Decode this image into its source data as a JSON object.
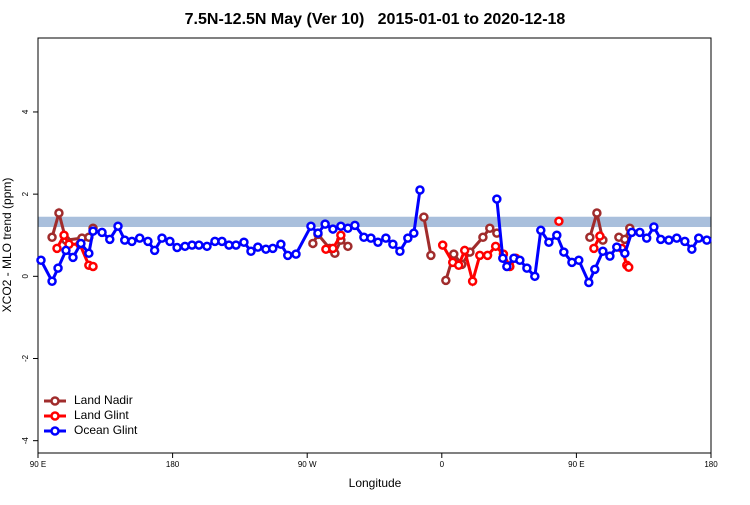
{
  "chart_data": {
    "type": "line",
    "title": "7.5N-12.5N May (Ver 10)   2015-01-01 to 2020-12-18",
    "x_label": "Longitude",
    "y_label": "XCO2 - MLO trend (ppm)",
    "xlim": [
      90,
      540
    ],
    "xticks": [
      {
        "value": 90,
        "label": "90 E"
      },
      {
        "value": 180,
        "label": "180"
      },
      {
        "value": 270,
        "label": "90 W"
      },
      {
        "value": 360,
        "label": "0"
      },
      {
        "value": 450,
        "label": "90 E"
      },
      {
        "value": 540,
        "label": "180"
      }
    ],
    "ylim": [
      -4.3,
      5.8
    ],
    "yticks": [
      -4,
      -2,
      0,
      2,
      4
    ],
    "band": {
      "range": [
        1.2,
        1.45
      ],
      "color": "#a9bfdc"
    },
    "legend": "bottom-left",
    "series": [
      {
        "name": "Land Nadir",
        "color": "#a02c2c",
        "x": [
          99.4,
          104,
          108.7,
          119.4,
          124,
          126.8,
          null,
          273.8,
          277.2,
          285,
          288.5,
          292.5,
          297.2,
          null,
          348,
          352.7,
          null,
          362.7,
          368,
          373.4,
          378.8,
          387.5,
          392.1,
          396.8,
          null,
          459,
          463.7,
          467.7,
          null,
          478.4,
          482.4,
          485.7
        ],
        "values": [
          0.95,
          1.54,
          0.88,
          0.93,
          0.95,
          1.17,
          null,
          0.8,
          1.02,
          0.68,
          0.56,
          0.88,
          0.73,
          null,
          1.44,
          0.51,
          null,
          -0.1,
          0.54,
          0.29,
          0.59,
          0.95,
          1.17,
          1.05,
          null,
          0.95,
          1.54,
          0.88,
          null,
          0.95,
          0.9,
          1.17
        ]
      },
      {
        "name": "Land Glint",
        "color": "#ff0000",
        "x": [
          102.7,
          107.4,
          110.7,
          118,
          124,
          126.8,
          null,
          282.5,
          287.2,
          292.5,
          null,
          360.6,
          367.3,
          371.3,
          375.3,
          380.6,
          385.4,
          390.6,
          396,
          401.2,
          405.5,
          409.5,
          null,
          438.3,
          null,
          461.7,
          465.7,
          null,
          480.4,
          483.7,
          485
        ],
        "values": [
          0.68,
          1.0,
          0.78,
          0.78,
          0.27,
          0.24,
          null,
          0.66,
          0.68,
          1.0,
          null,
          0.76,
          0.34,
          0.27,
          0.63,
          -0.12,
          0.51,
          0.51,
          0.73,
          0.54,
          0.24,
          0.44,
          null,
          1.34,
          null,
          0.68,
          0.98,
          null,
          0.68,
          0.27,
          0.22
        ]
      },
      {
        "name": "Ocean Glint",
        "color": "#0000ff",
        "x": [
          92,
          99.4,
          103.4,
          108.7,
          113.4,
          118.7,
          124,
          126.8,
          132.8,
          138,
          143.5,
          148,
          152.8,
          158,
          163.5,
          168,
          172.9,
          178.2,
          183,
          188.3,
          193,
          197.6,
          203,
          208.3,
          213,
          217.7,
          222.4,
          227.7,
          232.4,
          237,
          242.4,
          247,
          252.4,
          257,
          262.5,
          272.5,
          277.2,
          282,
          287.2,
          292.5,
          297.2,
          301.9,
          307.9,
          312.6,
          317.3,
          322.6,
          327.3,
          332,
          337.3,
          341.3,
          345.4,
          null,
          396.8,
          400.8,
          403.5,
          408.2,
          412.2,
          416.9,
          422.2,
          426.2,
          431.6,
          436.9,
          441.6,
          447,
          451.6,
          458.3,
          462.3,
          467.7,
          472.4,
          477,
          482.4,
          487,
          492.4,
          497,
          501.8,
          506.4,
          511.8,
          517.1,
          522.5,
          527.2,
          531.8,
          537.2
        ],
        "values": [
          0.39,
          -0.12,
          0.2,
          0.63,
          0.46,
          0.8,
          0.56,
          1.1,
          1.07,
          0.9,
          1.22,
          0.88,
          0.85,
          0.93,
          0.85,
          0.63,
          0.93,
          0.85,
          0.7,
          0.73,
          0.76,
          0.76,
          0.73,
          0.85,
          0.85,
          0.76,
          0.76,
          0.83,
          0.61,
          0.71,
          0.66,
          0.68,
          0.78,
          0.51,
          0.54,
          1.22,
          1.05,
          1.27,
          1.15,
          1.22,
          1.17,
          1.24,
          0.95,
          0.93,
          0.83,
          0.93,
          0.78,
          0.61,
          0.93,
          1.05,
          2.1,
          null,
          1.88,
          0.44,
          0.24,
          0.44,
          0.39,
          0.2,
          0,
          1.12,
          0.83,
          1.0,
          0.59,
          0.34,
          0.39,
          -0.15,
          0.17,
          0.61,
          0.49,
          0.71,
          0.56,
          1.07,
          1.07,
          0.93,
          1.2,
          0.9,
          0.88,
          0.93,
          0.85,
          0.66,
          0.93,
          0.88
        ]
      }
    ]
  }
}
